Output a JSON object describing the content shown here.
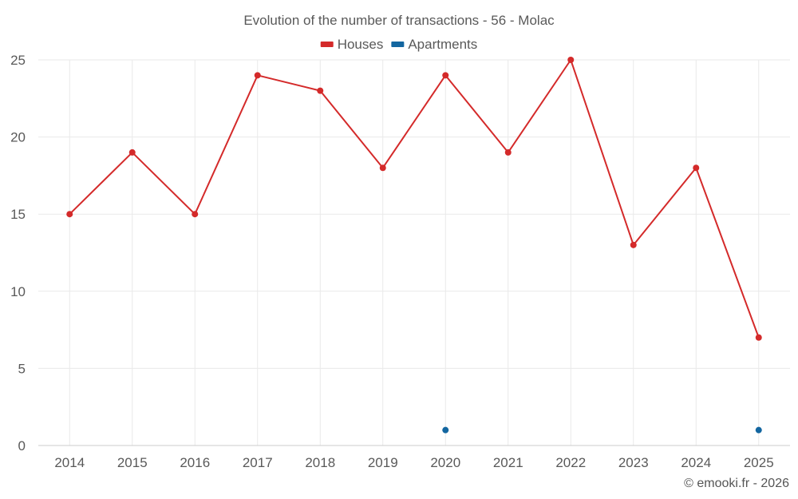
{
  "chart_data": {
    "type": "line",
    "title": "Evolution of the number of transactions - 56 - Molac",
    "categories": [
      "2014",
      "2015",
      "2016",
      "2017",
      "2018",
      "2019",
      "2020",
      "2021",
      "2022",
      "2023",
      "2024",
      "2025"
    ],
    "series": [
      {
        "name": "Houses",
        "color": "#d42a2a",
        "values": [
          15,
          19,
          15,
          24,
          23,
          18,
          24,
          19,
          25,
          13,
          18,
          7
        ]
      },
      {
        "name": "Apartments",
        "color": "#1366a0",
        "values": [
          null,
          null,
          null,
          null,
          null,
          null,
          1,
          null,
          null,
          null,
          null,
          1
        ]
      }
    ],
    "yticks": [
      0,
      5,
      10,
      15,
      20,
      25
    ],
    "ylim": [
      0,
      25
    ],
    "legend": "top-center",
    "grid": true,
    "xlabel": "",
    "ylabel": ""
  },
  "credit": "© emooki.fr - 2026"
}
